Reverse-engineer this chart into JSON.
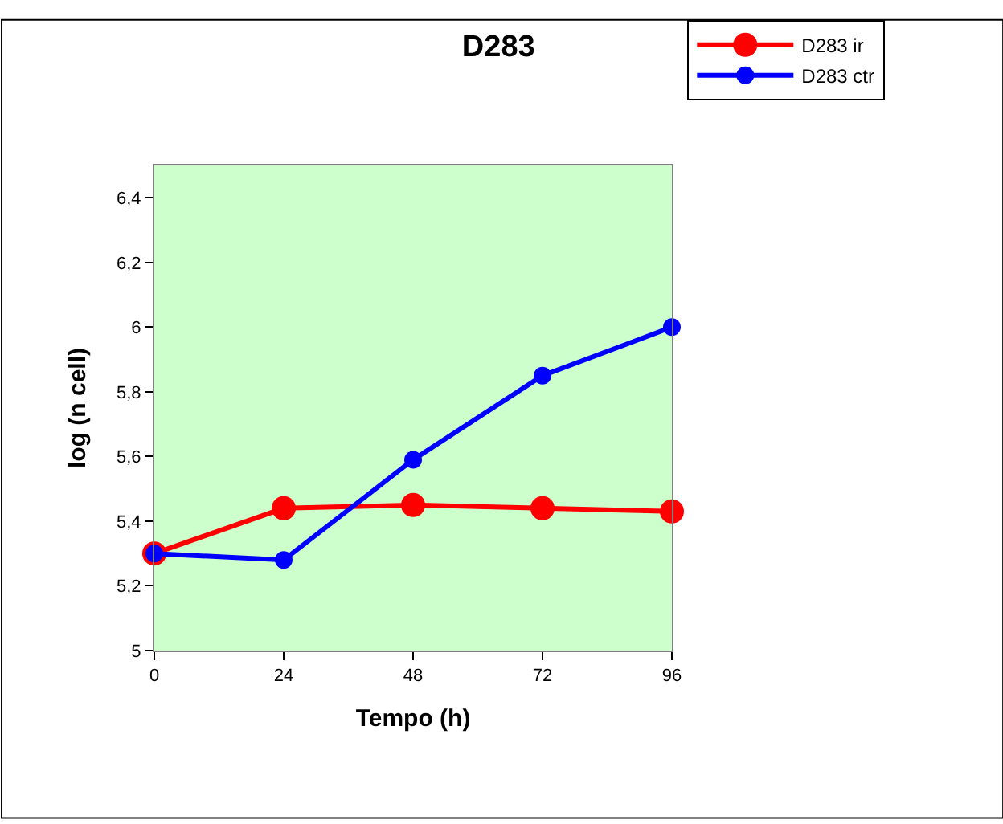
{
  "chart_data": {
    "type": "line",
    "title": "D283",
    "xlabel": "Tempo (h)",
    "ylabel": "log (n cell)",
    "x": [
      0,
      24,
      48,
      72,
      96
    ],
    "series": [
      {
        "name": "D283 ir",
        "color": "#ff0000",
        "values": [
          5.3,
          5.44,
          5.45,
          5.44,
          5.43
        ]
      },
      {
        "name": "D283 ctr",
        "color": "#0000ff",
        "values": [
          5.3,
          5.28,
          5.59,
          5.85,
          6.0
        ]
      }
    ],
    "xlim": [
      0,
      96
    ],
    "xticks": [
      0,
      24,
      48,
      72,
      96
    ],
    "ylim": [
      5,
      6.5
    ],
    "yticks": [
      5,
      {
        "value": 5.2,
        "label": "5,2"
      },
      {
        "value": 5.4,
        "label": "5,4"
      },
      {
        "value": 5.6,
        "label": "5,6"
      },
      {
        "value": 5.8,
        "label": "5,8"
      },
      6,
      {
        "value": 6.2,
        "label": "6,2"
      },
      {
        "value": 6.4,
        "label": "6,4"
      }
    ],
    "grid": false,
    "legend": "top right",
    "marker": "circle",
    "line_style": "solid"
  }
}
